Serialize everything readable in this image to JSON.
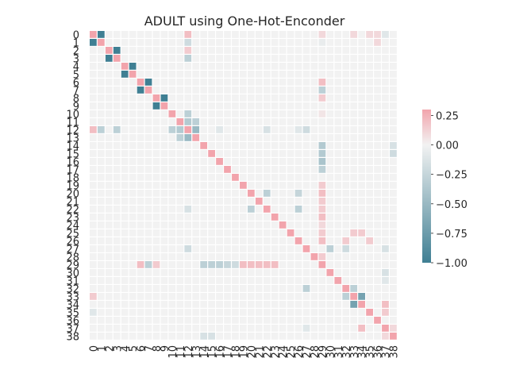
{
  "chart_data": {
    "type": "heatmap",
    "title": "ADULT using One-Hot-Enconder",
    "row_labels": [
      "0",
      "1",
      "2",
      "3",
      "4",
      "5",
      "6",
      "7",
      "8",
      "9",
      "10",
      "11",
      "12",
      "13",
      "14",
      "15",
      "16",
      "17",
      "18",
      "19",
      "20",
      "21",
      "22",
      "23",
      "24",
      "25",
      "26",
      "27",
      "28",
      "29",
      "30",
      "31",
      "32",
      "33",
      "34",
      "35",
      "36",
      "37",
      "38"
    ],
    "col_labels": [
      "0",
      "1",
      "2",
      "3",
      "4",
      "5",
      "6",
      "7",
      "8",
      "9",
      "10",
      "11",
      "12",
      "13",
      "14",
      "15",
      "16",
      "17",
      "18",
      "19",
      "20",
      "21",
      "22",
      "23",
      "24",
      "25",
      "26",
      "27",
      "28",
      "29",
      "30",
      "31",
      "32",
      "33",
      "34",
      "35",
      "36",
      "37",
      "38"
    ],
    "colorbar": {
      "min": -1.0,
      "max": 0.3,
      "ticks": [
        0.25,
        0.0,
        -0.25,
        -0.5,
        -0.75,
        -1.0
      ],
      "tick_labels": [
        "0.25",
        "0.00",
        "−0.25",
        "−0.50",
        "−0.75",
        "−1.00"
      ],
      "low_color": "#3f7f93",
      "mid_color": "#f2f2f2",
      "high_color": "#f2a4ac"
    },
    "diagonal_value": 0.3,
    "base_value": 0.0,
    "notable_cells": [
      [
        0,
        1,
        -1.0
      ],
      [
        1,
        0,
        -1.0
      ],
      [
        2,
        3,
        -1.0
      ],
      [
        3,
        2,
        -1.0
      ],
      [
        4,
        5,
        -1.0
      ],
      [
        5,
        4,
        -1.0
      ],
      [
        6,
        7,
        -1.0
      ],
      [
        7,
        6,
        -1.0
      ],
      [
        8,
        9,
        -1.0
      ],
      [
        9,
        8,
        -1.0
      ],
      [
        0,
        12,
        0.2
      ],
      [
        12,
        0,
        0.2
      ],
      [
        1,
        12,
        -0.2
      ],
      [
        12,
        1,
        -0.3
      ],
      [
        2,
        12,
        0.15
      ],
      [
        3,
        12,
        -0.3
      ],
      [
        12,
        3,
        -0.3
      ],
      [
        11,
        12,
        -0.35
      ],
      [
        12,
        11,
        -0.35
      ],
      [
        11,
        13,
        -0.3
      ],
      [
        13,
        12,
        -0.5
      ],
      [
        12,
        13,
        -0.5
      ],
      [
        10,
        12,
        -0.3
      ],
      [
        12,
        10,
        -0.3
      ],
      [
        13,
        11,
        -0.3
      ],
      [
        14,
        29,
        -0.35
      ],
      [
        15,
        29,
        -0.35
      ],
      [
        16,
        29,
        -0.4
      ],
      [
        17,
        29,
        -0.3
      ],
      [
        6,
        29,
        0.2
      ],
      [
        29,
        6,
        0.2
      ],
      [
        7,
        29,
        -0.3
      ],
      [
        29,
        7,
        -0.3
      ],
      [
        8,
        29,
        0.15
      ],
      [
        29,
        8,
        0.15
      ],
      [
        20,
        22,
        -0.3
      ],
      [
        22,
        20,
        -0.3
      ],
      [
        22,
        26,
        -0.3
      ],
      [
        20,
        26,
        -0.25
      ],
      [
        21,
        29,
        0.15
      ],
      [
        20,
        29,
        0.2
      ],
      [
        22,
        29,
        0.15
      ],
      [
        29,
        14,
        -0.3
      ],
      [
        29,
        15,
        -0.3
      ],
      [
        29,
        16,
        -0.3
      ],
      [
        29,
        17,
        -0.25
      ],
      [
        29,
        18,
        -0.2
      ],
      [
        29,
        19,
        0.2
      ],
      [
        29,
        20,
        0.2
      ],
      [
        29,
        21,
        0.2
      ],
      [
        29,
        22,
        0.2
      ],
      [
        29,
        23,
        0.2
      ],
      [
        33,
        34,
        -0.7
      ],
      [
        34,
        33,
        -0.7
      ],
      [
        32,
        33,
        -0.3
      ],
      [
        33,
        32,
        -0.3
      ],
      [
        32,
        27,
        -0.3
      ],
      [
        27,
        30,
        -0.3
      ],
      [
        27,
        32,
        -0.2
      ],
      [
        26,
        32,
        0.15
      ],
      [
        25,
        33,
        0.15
      ],
      [
        25,
        34,
        0.15
      ],
      [
        26,
        35,
        0.15
      ],
      [
        34,
        37,
        0.2
      ],
      [
        37,
        34,
        0.2
      ],
      [
        35,
        37,
        0.15
      ],
      [
        0,
        36,
        0.1
      ],
      [
        0,
        37,
        -0.1
      ],
      [
        1,
        36,
        0.1
      ],
      [
        37,
        38,
        0.1
      ],
      [
        38,
        37,
        0.1
      ],
      [
        15,
        38,
        -0.2
      ],
      [
        14,
        38,
        -0.15
      ],
      [
        38,
        14,
        -0.15
      ],
      [
        38,
        15,
        -0.15
      ],
      [
        12,
        22,
        -0.15
      ],
      [
        22,
        12,
        -0.15
      ],
      [
        27,
        12,
        -0.2
      ],
      [
        12,
        27,
        -0.2
      ],
      [
        30,
        37,
        -0.15
      ],
      [
        31,
        37,
        -0.1
      ],
      [
        27,
        37,
        -0.15
      ],
      [
        37,
        27,
        -0.1
      ],
      [
        33,
        0,
        0.15
      ],
      [
        0,
        33,
        0.1
      ],
      [
        35,
        0,
        -0.1
      ],
      [
        0,
        35,
        0.1
      ],
      [
        23,
        29,
        0.2
      ],
      [
        19,
        29,
        0.15
      ],
      [
        24,
        29,
        0.1
      ],
      [
        25,
        29,
        0.15
      ],
      [
        26,
        29,
        0.2
      ],
      [
        28,
        29,
        0.15
      ],
      [
        10,
        29,
        0.05
      ],
      [
        0,
        29,
        0.1
      ],
      [
        1,
        29,
        -0.05
      ],
      [
        12,
        16,
        -0.1
      ],
      [
        12,
        26,
        -0.1
      ]
    ]
  }
}
